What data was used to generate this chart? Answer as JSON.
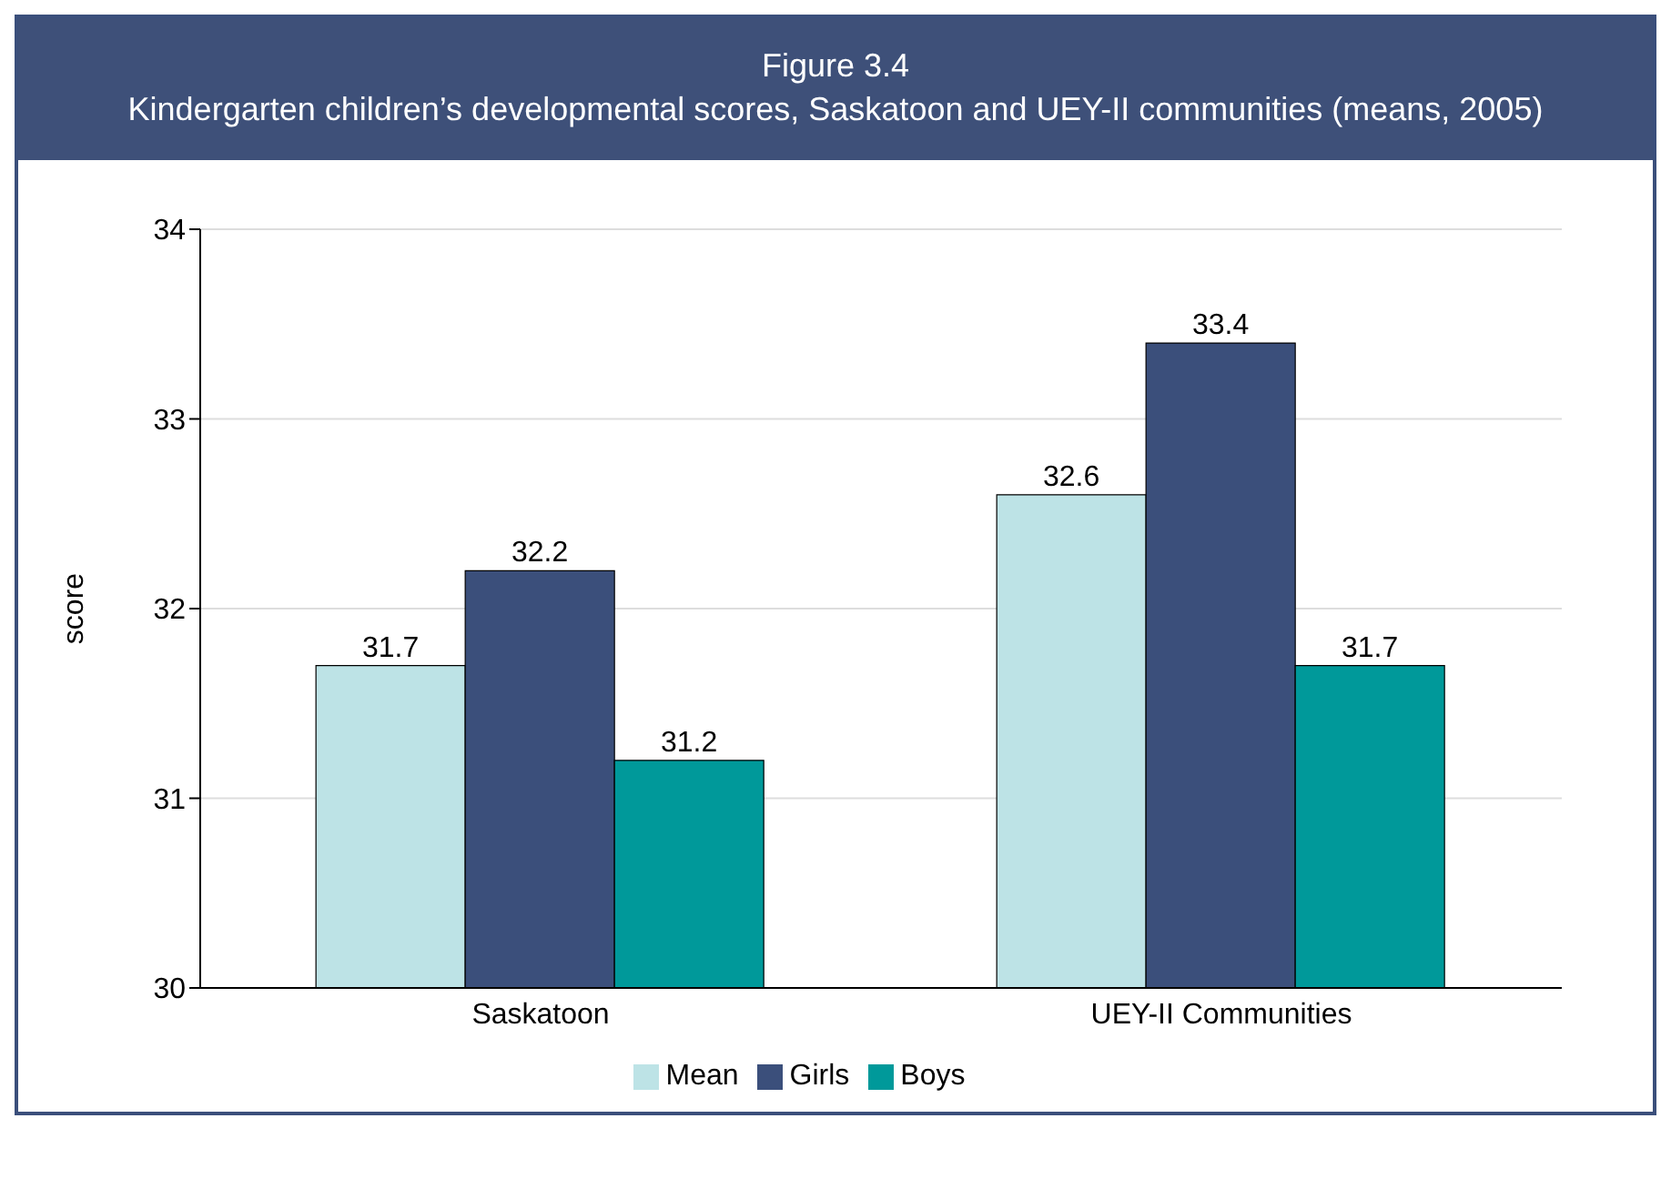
{
  "chart_data": {
    "type": "bar",
    "title": "Figure 3.4",
    "subtitle": "Kindergarten children’s developmental scores, Saskatoon and UEY-II communities (means, 2005)",
    "ylabel": "score",
    "categories": [
      "Saskatoon",
      "UEY-II Communities"
    ],
    "series": [
      {
        "name": "Mean",
        "color": "#bde3e6",
        "values": [
          31.7,
          32.6
        ]
      },
      {
        "name": "Girls",
        "color": "#3b4f7b",
        "values": [
          32.2,
          33.4
        ]
      },
      {
        "name": "Boys",
        "color": "#00999a",
        "values": [
          31.2,
          31.7
        ]
      }
    ],
    "ylim": [
      30,
      34
    ],
    "yticks": [
      30,
      31,
      32,
      33,
      34
    ],
    "grid": "y",
    "legend": "bottom",
    "data_labels": true
  }
}
